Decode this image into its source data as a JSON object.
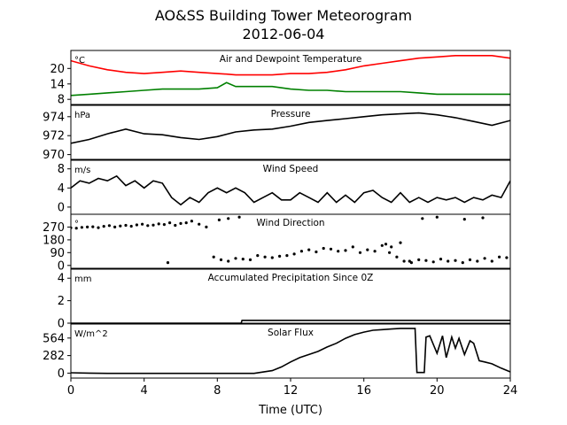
{
  "figure": {
    "title_line1": "AO&SS Building Tower Meteorogram",
    "title_line2": "2012-06-04",
    "xlabel": "Time (UTC)",
    "xticks": [
      "0",
      "4",
      "8",
      "12",
      "16",
      "20",
      "24"
    ]
  },
  "chart_data": [
    {
      "type": "line",
      "title": "Air and Dewpoint Temperature",
      "unit_label": "°C",
      "x": [
        0,
        1,
        2,
        3,
        4,
        5,
        6,
        7,
        8,
        8.5,
        9,
        10,
        11,
        12,
        13,
        14,
        15,
        16,
        17,
        18,
        19,
        20,
        21,
        22,
        23,
        24
      ],
      "series": [
        {
          "color": "#ff0000",
          "values": [
            23,
            21,
            19.5,
            18.5,
            18,
            18.5,
            19,
            18.5,
            18,
            17.8,
            17.5,
            17.5,
            17.5,
            18,
            18,
            18.5,
            19.5,
            21,
            22,
            23,
            24,
            24.5,
            25,
            25,
            25,
            24
          ]
        },
        {
          "color": "#008000",
          "values": [
            9.5,
            10,
            10.5,
            11,
            11.5,
            12,
            12,
            12,
            12.5,
            14.5,
            13,
            13,
            13,
            12,
            11.5,
            11.5,
            11,
            11,
            11,
            11,
            10.5,
            10,
            10,
            10,
            10,
            10
          ]
        }
      ],
      "yticks": [
        8,
        14,
        20
      ],
      "ylim": [
        6,
        27
      ],
      "xlim": [
        0,
        24
      ]
    },
    {
      "type": "line",
      "title": "Pressure",
      "unit_label": "hPa",
      "x": [
        0,
        1,
        2,
        3,
        4,
        5,
        6,
        7,
        8,
        9,
        10,
        11,
        12,
        13,
        14,
        15,
        16,
        17,
        18,
        19,
        20,
        21,
        22,
        23,
        24
      ],
      "series": [
        {
          "color": "#000000",
          "values": [
            971.2,
            971.6,
            972.2,
            972.7,
            972.2,
            972.1,
            971.8,
            971.6,
            971.9,
            972.4,
            972.6,
            972.7,
            973.0,
            973.4,
            973.6,
            973.8,
            974.0,
            974.2,
            974.3,
            974.4,
            974.2,
            973.9,
            973.5,
            973.1,
            973.6
          ]
        }
      ],
      "yticks": [
        970,
        972,
        974
      ],
      "ylim": [
        969.5,
        975.2
      ],
      "xlim": [
        0,
        24
      ]
    },
    {
      "type": "line",
      "title": "Wind Speed",
      "unit_label": "m/s",
      "x": [
        0,
        0.5,
        1,
        1.5,
        2,
        2.5,
        3,
        3.5,
        4,
        4.5,
        5,
        5.5,
        6,
        6.5,
        7,
        7.5,
        8,
        8.5,
        9,
        9.5,
        10,
        10.5,
        11,
        11.5,
        12,
        12.5,
        13,
        13.5,
        14,
        14.5,
        15,
        15.5,
        16,
        16.5,
        17,
        17.5,
        18,
        18.5,
        19,
        19.5,
        20,
        20.5,
        21,
        21.5,
        22,
        22.5,
        23,
        23.5,
        24
      ],
      "series": [
        {
          "color": "#000000",
          "values": [
            4,
            5.5,
            5,
            6,
            5.5,
            6.5,
            4.5,
            5.5,
            4,
            5.5,
            5,
            2,
            0.5,
            2,
            1,
            3,
            4,
            3,
            4,
            3,
            1,
            2,
            3,
            1.5,
            1.5,
            3,
            2,
            1,
            3,
            1,
            2.5,
            1,
            3,
            3.5,
            2,
            1,
            3,
            1,
            2,
            1,
            2,
            1.5,
            2,
            1,
            2,
            1.5,
            2.5,
            2,
            5.5
          ]
        }
      ],
      "yticks": [
        0,
        4,
        8
      ],
      "ylim": [
        -1.5,
        9.8
      ],
      "xlim": [
        0,
        24
      ]
    },
    {
      "type": "scatter",
      "title": "Wind Direction",
      "unit_label": "°",
      "x": [
        0,
        0.3,
        0.6,
        0.9,
        1.2,
        1.5,
        1.8,
        2.1,
        2.4,
        2.7,
        3.0,
        3.3,
        3.6,
        3.9,
        4.2,
        4.5,
        4.8,
        5.1,
        5.4,
        5.7,
        6.0,
        6.3,
        6.6,
        7.0,
        7.4,
        7.8,
        8.2,
        8.6,
        9.0,
        9.4,
        9.8,
        10.2,
        10.6,
        11.0,
        11.4,
        11.8,
        12.2,
        12.6,
        13.0,
        13.4,
        13.8,
        14.2,
        14.6,
        15.0,
        15.4,
        15.8,
        16.2,
        16.6,
        17.0,
        17.4,
        17.8,
        18.2,
        18.6,
        19.0,
        19.4,
        19.8,
        20.2,
        20.6,
        21.0,
        21.4,
        21.8,
        22.2,
        22.6,
        23.0,
        23.4,
        23.8,
        5.3,
        8.1,
        8.6,
        9.2,
        17.2,
        17.5,
        18.0,
        18.5,
        19.2,
        20.0,
        21.5,
        22.5
      ],
      "series": [
        {
          "color": "#000000",
          "values": [
            265,
            262,
            268,
            270,
            272,
            266,
            275,
            280,
            270,
            278,
            282,
            276,
            285,
            290,
            280,
            284,
            292,
            288,
            300,
            282,
            295,
            300,
            312,
            290,
            270,
            60,
            40,
            30,
            50,
            45,
            40,
            70,
            60,
            55,
            65,
            70,
            80,
            100,
            110,
            95,
            120,
            115,
            100,
            105,
            130,
            90,
            110,
            100,
            140,
            90,
            60,
            30,
            20,
            40,
            35,
            25,
            45,
            30,
            35,
            20,
            40,
            30,
            50,
            30,
            60,
            55,
            20,
            320,
            330,
            340,
            150,
            130,
            160,
            30,
            330,
            340,
            325,
            335
          ]
        }
      ],
      "yticks": [
        0,
        90,
        180,
        270
      ],
      "ylim": [
        -20,
        360
      ],
      "xlim": [
        0,
        24
      ]
    },
    {
      "type": "line",
      "title": "Accumulated Precipitation Since 0Z",
      "unit_label": "mm",
      "x": [
        0,
        9.3,
        9.35,
        24
      ],
      "series": [
        {
          "color": "#000000",
          "values": [
            0,
            0,
            0.25,
            0.25
          ]
        }
      ],
      "yticks": [
        0,
        2,
        4
      ],
      "ylim": [
        0,
        4.8
      ],
      "xlim": [
        0,
        24
      ]
    },
    {
      "type": "line",
      "title": "Solar Flux",
      "unit_label": "W/m^2",
      "x": [
        0,
        1,
        2,
        3,
        4,
        5,
        6,
        7,
        8,
        9,
        10,
        11,
        11.5,
        12,
        12.5,
        13,
        13.5,
        14,
        14.5,
        15,
        15.5,
        16,
        16.5,
        17,
        17.5,
        18,
        18.5,
        18.8,
        18.9,
        19.3,
        19.4,
        19.6,
        20,
        20.3,
        20.5,
        20.8,
        21,
        21.2,
        21.5,
        21.8,
        22,
        22.3,
        22.6,
        23,
        23.5,
        24
      ],
      "series": [
        {
          "color": "#000000",
          "values": [
            5,
            0,
            -5,
            -5,
            -5,
            -5,
            -5,
            -5,
            -5,
            -5,
            -5,
            40,
            100,
            180,
            250,
            300,
            350,
            420,
            480,
            560,
            620,
            660,
            690,
            700,
            710,
            720,
            720,
            720,
            10,
            10,
            580,
            600,
            320,
            600,
            250,
            580,
            400,
            560,
            300,
            520,
            480,
            200,
            180,
            150,
            80,
            20
          ]
        }
      ],
      "yticks": [
        0,
        282,
        564
      ],
      "ylim": [
        -80,
        790
      ],
      "xlim": [
        0,
        24
      ]
    }
  ]
}
